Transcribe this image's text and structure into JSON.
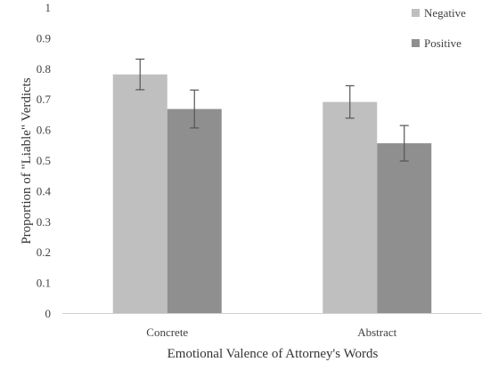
{
  "chart_data": {
    "type": "bar",
    "title": "",
    "xlabel": "Emotional Valence of Attorney's Words",
    "ylabel": "Proportion of \"Liable\" Verdicts",
    "categories": [
      "Concrete",
      "Abstract"
    ],
    "ylim": [
      0,
      1
    ],
    "yticks": [
      "0",
      "0.1",
      "0.2",
      "0.3",
      "0.4",
      "0.5",
      "0.6",
      "0.7",
      "0.8",
      "0.9",
      "1"
    ],
    "grid": false,
    "legend_position": "top-right",
    "series": [
      {
        "name": "Negative",
        "color": "#bfbfbf",
        "values": [
          0.78,
          0.69
        ],
        "errors": [
          0.05,
          0.053
        ]
      },
      {
        "name": "Positive",
        "color": "#8f8f8f",
        "values": [
          0.667,
          0.555
        ],
        "errors": [
          0.062,
          0.058
        ]
      }
    ]
  }
}
